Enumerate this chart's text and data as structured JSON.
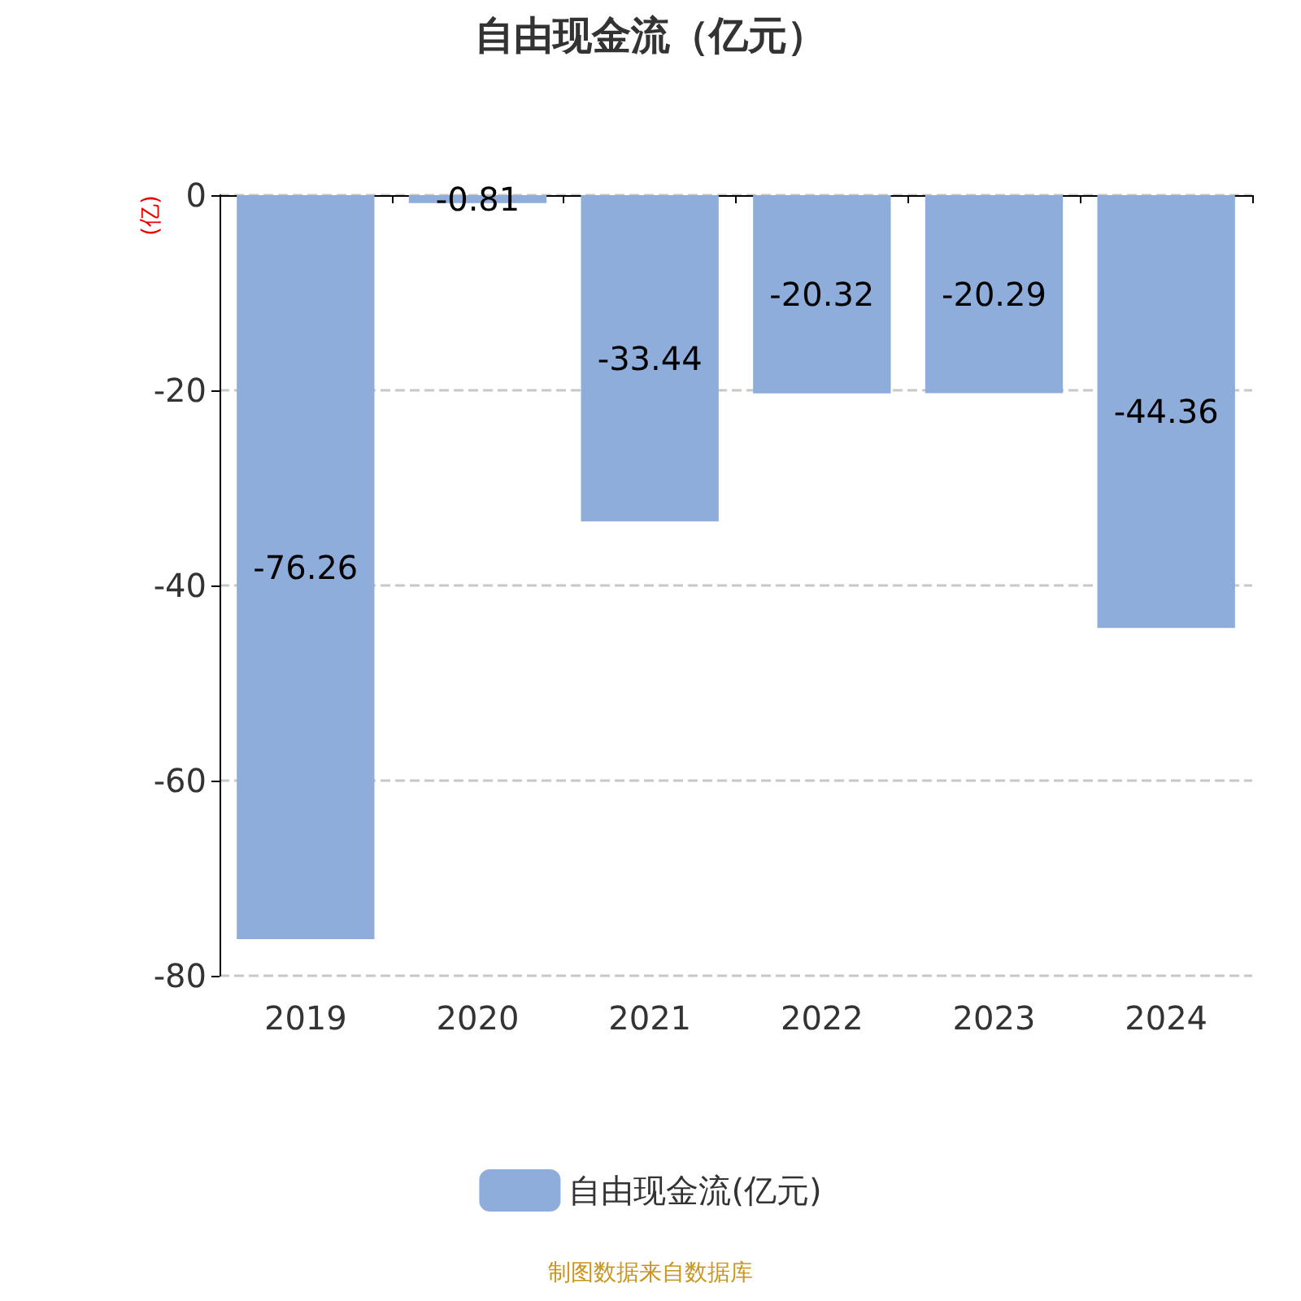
{
  "chart_data": {
    "type": "bar",
    "title": "自由现金流（亿元）",
    "ylabel": "(亿)",
    "categories": [
      "2019",
      "2020",
      "2021",
      "2022",
      "2023",
      "2024"
    ],
    "series": [
      {
        "name": "自由现金流(亿元)",
        "color": "#8eaddb",
        "values": [
          -76.26,
          -0.81,
          -33.44,
          -20.32,
          -20.29,
          -44.36
        ]
      }
    ],
    "ylim": [
      -80,
      0
    ],
    "yticks": [
      -80,
      -60,
      -40,
      -20,
      0
    ],
    "grid": "y",
    "legend": "bottom",
    "data_labels": true,
    "annotations": [
      "制图数据来自数据库"
    ]
  }
}
